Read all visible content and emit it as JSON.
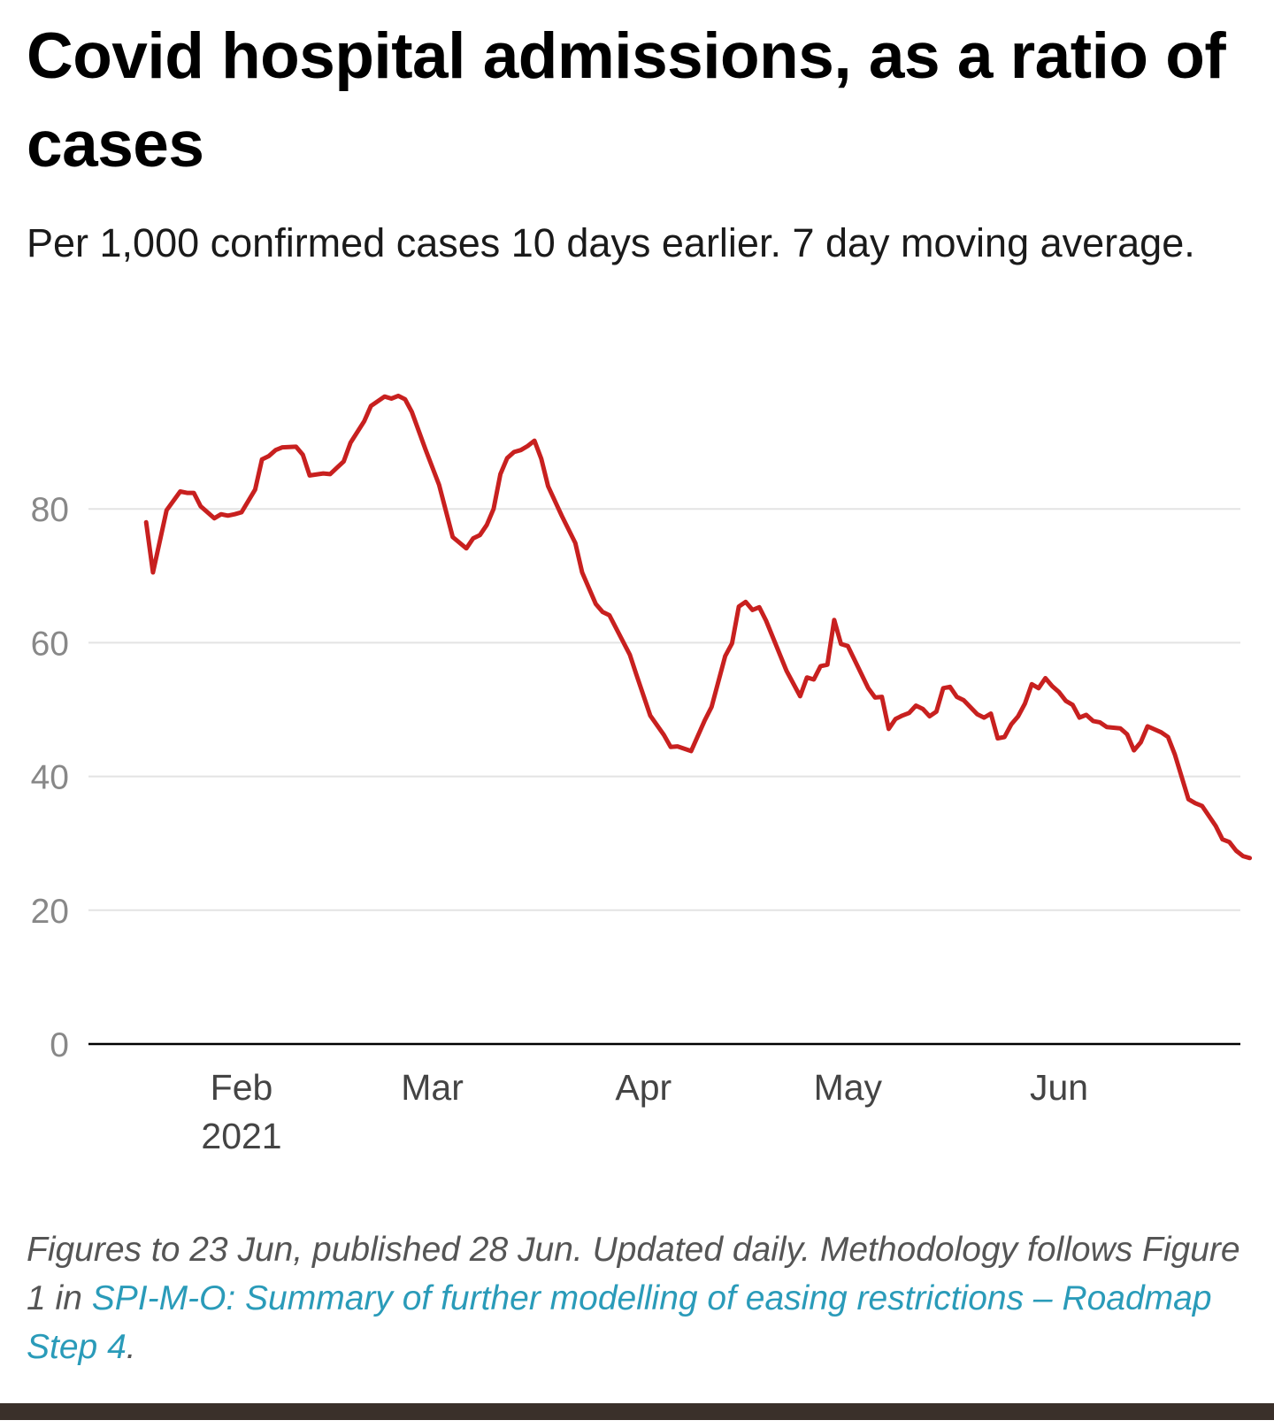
{
  "title": "Covid hospital admissions, as a ratio of cases",
  "subtitle": "Per 1,000 confirmed cases 10 days earlier. 7 day moving average.",
  "footnote": {
    "text_before": "Figures to 23 Jun, published 28 Jun. Updated daily. Methodology follows Figure 1 in ",
    "link_text": "SPI-M-O: Summary of further modelling of easing restrictions – Roadmap Step 4",
    "text_after": "."
  },
  "colors": {
    "line": "#c8201f",
    "gridline": "#e3e3e3",
    "baseline": "#000000",
    "axis_label": "#888888",
    "link": "#2a9bb9",
    "footnote": "#555555"
  },
  "chart_data": {
    "type": "line",
    "title": "Covid hospital admissions, as a ratio of cases",
    "subtitle": "Per 1,000 confirmed cases 10 days earlier. 7 day moving average.",
    "xlabel": "",
    "ylabel": "",
    "ylim": [
      0,
      100
    ],
    "xlim": [
      "2021-01-14",
      "2021-06-28"
    ],
    "grid": true,
    "legend": "none",
    "y_ticks": [
      "0",
      "20",
      "40",
      "60",
      "80"
    ],
    "x_ticks": [
      {
        "date": "2021-02-01",
        "label": "Feb",
        "sublabel": "2021"
      },
      {
        "date": "2021-03-01",
        "label": "Mar",
        "sublabel": ""
      },
      {
        "date": "2021-04-01",
        "label": "Apr",
        "sublabel": ""
      },
      {
        "date": "2021-05-01",
        "label": "May",
        "sublabel": ""
      },
      {
        "date": "2021-06-01",
        "label": "Jun",
        "sublabel": ""
      }
    ],
    "series": [
      {
        "values": [
          [
            "2021-01-18",
            78.0
          ],
          [
            "2021-01-19",
            70.5
          ],
          [
            "2021-01-21",
            79.8
          ],
          [
            "2021-01-23",
            82.6
          ],
          [
            "2021-01-24",
            82.4
          ],
          [
            "2021-01-25",
            82.4
          ],
          [
            "2021-01-26",
            80.4
          ],
          [
            "2021-01-28",
            78.6
          ],
          [
            "2021-01-29",
            79.2
          ],
          [
            "2021-01-30",
            79.0
          ],
          [
            "2021-01-31",
            79.2
          ],
          [
            "2021-02-01",
            79.5
          ],
          [
            "2021-02-03",
            82.9
          ],
          [
            "2021-02-04",
            87.4
          ],
          [
            "2021-02-05",
            87.9
          ],
          [
            "2021-02-06",
            88.8
          ],
          [
            "2021-02-07",
            89.2
          ],
          [
            "2021-02-09",
            89.3
          ],
          [
            "2021-02-10",
            88.1
          ],
          [
            "2021-02-11",
            85.0
          ],
          [
            "2021-02-13",
            85.3
          ],
          [
            "2021-02-14",
            85.2
          ],
          [
            "2021-02-16",
            87.1
          ],
          [
            "2021-02-17",
            89.9
          ],
          [
            "2021-02-19",
            93.1
          ],
          [
            "2021-02-20",
            95.4
          ],
          [
            "2021-02-22",
            96.8
          ],
          [
            "2021-02-23",
            96.5
          ],
          [
            "2021-02-24",
            96.9
          ],
          [
            "2021-02-25",
            96.4
          ],
          [
            "2021-02-26",
            94.5
          ],
          [
            "2021-02-28",
            88.9
          ],
          [
            "2021-03-02",
            83.6
          ],
          [
            "2021-03-04",
            75.8
          ],
          [
            "2021-03-06",
            74.1
          ],
          [
            "2021-03-07",
            75.6
          ],
          [
            "2021-03-08",
            76.1
          ],
          [
            "2021-03-09",
            77.6
          ],
          [
            "2021-03-10",
            80.0
          ],
          [
            "2021-03-11",
            85.2
          ],
          [
            "2021-03-12",
            87.6
          ],
          [
            "2021-03-13",
            88.5
          ],
          [
            "2021-03-14",
            88.8
          ],
          [
            "2021-03-15",
            89.4
          ],
          [
            "2021-03-16",
            90.2
          ],
          [
            "2021-03-17",
            87.5
          ],
          [
            "2021-03-18",
            83.4
          ],
          [
            "2021-03-20",
            79.0
          ],
          [
            "2021-03-22",
            74.9
          ],
          [
            "2021-03-23",
            70.5
          ],
          [
            "2021-03-25",
            65.8
          ],
          [
            "2021-03-26",
            64.6
          ],
          [
            "2021-03-27",
            64.1
          ],
          [
            "2021-03-30",
            58.2
          ],
          [
            "2021-03-31",
            55.1
          ],
          [
            "2021-04-02",
            49.1
          ],
          [
            "2021-04-04",
            46.2
          ],
          [
            "2021-04-05",
            44.4
          ],
          [
            "2021-04-06",
            44.5
          ],
          [
            "2021-04-08",
            43.8
          ],
          [
            "2021-04-10",
            48.4
          ],
          [
            "2021-04-11",
            50.4
          ],
          [
            "2021-04-13",
            58.0
          ],
          [
            "2021-04-14",
            59.9
          ],
          [
            "2021-04-15",
            65.4
          ],
          [
            "2021-04-16",
            66.1
          ],
          [
            "2021-04-17",
            64.9
          ],
          [
            "2021-04-18",
            65.3
          ],
          [
            "2021-04-19",
            63.3
          ],
          [
            "2021-04-22",
            55.8
          ],
          [
            "2021-04-24",
            52.0
          ],
          [
            "2021-04-25",
            54.8
          ],
          [
            "2021-04-26",
            54.5
          ],
          [
            "2021-04-27",
            56.5
          ],
          [
            "2021-04-28",
            56.7
          ],
          [
            "2021-04-29",
            63.4
          ],
          [
            "2021-04-30",
            59.8
          ],
          [
            "2021-05-01",
            59.5
          ],
          [
            "2021-05-04",
            53.2
          ],
          [
            "2021-05-05",
            51.8
          ],
          [
            "2021-05-06",
            51.9
          ],
          [
            "2021-05-07",
            47.1
          ],
          [
            "2021-05-08",
            48.6
          ],
          [
            "2021-05-09",
            49.1
          ],
          [
            "2021-05-10",
            49.5
          ],
          [
            "2021-05-11",
            50.6
          ],
          [
            "2021-05-12",
            50.1
          ],
          [
            "2021-05-13",
            49.0
          ],
          [
            "2021-05-14",
            49.7
          ],
          [
            "2021-05-15",
            53.2
          ],
          [
            "2021-05-16",
            53.4
          ],
          [
            "2021-05-17",
            51.9
          ],
          [
            "2021-05-18",
            51.4
          ],
          [
            "2021-05-20",
            49.3
          ],
          [
            "2021-05-21",
            48.8
          ],
          [
            "2021-05-22",
            49.4
          ],
          [
            "2021-05-23",
            45.7
          ],
          [
            "2021-05-24",
            45.9
          ],
          [
            "2021-05-25",
            47.8
          ],
          [
            "2021-05-26",
            49.0
          ],
          [
            "2021-05-27",
            50.9
          ],
          [
            "2021-05-28",
            53.8
          ],
          [
            "2021-05-29",
            53.2
          ],
          [
            "2021-05-30",
            54.7
          ],
          [
            "2021-05-31",
            53.5
          ],
          [
            "2021-06-01",
            52.6
          ],
          [
            "2021-06-02",
            51.3
          ],
          [
            "2021-06-03",
            50.7
          ],
          [
            "2021-06-04",
            48.8
          ],
          [
            "2021-06-05",
            49.2
          ],
          [
            "2021-06-06",
            48.3
          ],
          [
            "2021-06-07",
            48.1
          ],
          [
            "2021-06-08",
            47.4
          ],
          [
            "2021-06-10",
            47.2
          ],
          [
            "2021-06-11",
            46.3
          ],
          [
            "2021-06-12",
            43.9
          ],
          [
            "2021-06-13",
            45.1
          ],
          [
            "2021-06-14",
            47.5
          ],
          [
            "2021-06-16",
            46.6
          ],
          [
            "2021-06-17",
            45.9
          ],
          [
            "2021-06-18",
            43.3
          ],
          [
            "2021-06-20",
            36.6
          ],
          [
            "2021-06-21",
            36.0
          ],
          [
            "2021-06-22",
            35.6
          ],
          [
            "2021-06-24",
            32.6
          ],
          [
            "2021-06-25",
            30.6
          ],
          [
            "2021-06-26",
            30.2
          ],
          [
            "2021-06-27",
            28.9
          ],
          [
            "2021-06-28",
            28.1
          ],
          [
            "2021-06-29",
            27.8
          ]
        ]
      }
    ]
  }
}
